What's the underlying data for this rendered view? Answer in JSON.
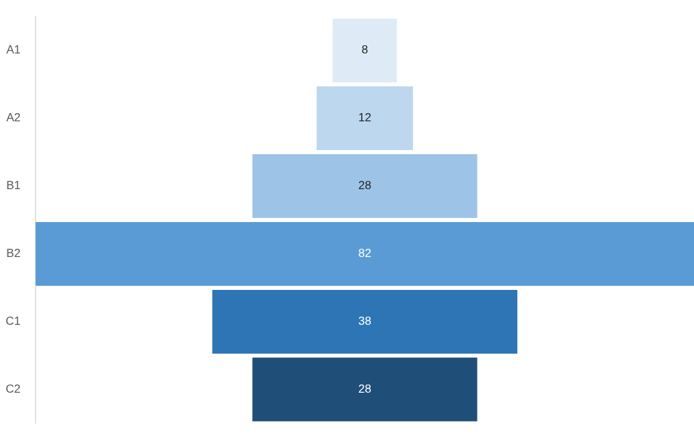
{
  "chart_data": {
    "type": "other",
    "categories": [
      "A1",
      "A2",
      "B1",
      "B2",
      "C1",
      "C2"
    ],
    "values": [
      8,
      12,
      28,
      82,
      38,
      28
    ],
    "colors": [
      "#deebf7",
      "#bdd7ee",
      "#9dc3e6",
      "#5b9bd5",
      "#2e75b6",
      "#1f4e79"
    ],
    "data_labels": true
  }
}
